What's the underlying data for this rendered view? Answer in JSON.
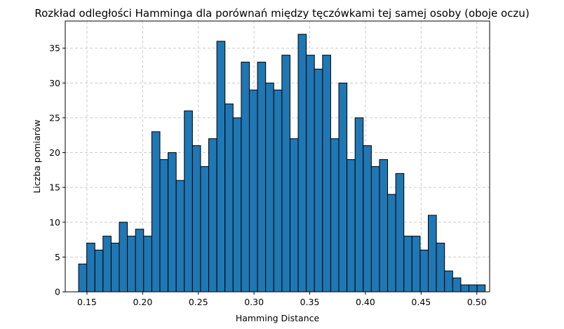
{
  "chart_data": {
    "type": "bar",
    "title": "Rozkład odległości Hamminga dla porównań między tęczówkami tej samej osoby (oboje oczu)",
    "xlabel": "Hamming Distance",
    "ylabel": "Liczba pomiarów",
    "xlim": [
      0.1305,
      0.5115
    ],
    "ylim": [
      0,
      38.9
    ],
    "grid": true,
    "colors": {
      "bar_fill": "#1f77b4",
      "bar_edge": "#000000",
      "grid": "#cccccc"
    },
    "x_ticks": [
      "0.15",
      "0.20",
      "0.25",
      "0.30",
      "0.35",
      "0.40",
      "0.45",
      "0.50"
    ],
    "x_tick_values": [
      0.15,
      0.2,
      0.25,
      0.3,
      0.35,
      0.4,
      0.45,
      0.5
    ],
    "y_ticks": [
      "0",
      "5",
      "10",
      "15",
      "20",
      "25",
      "30",
      "35"
    ],
    "y_tick_values": [
      0,
      5,
      10,
      15,
      20,
      25,
      30,
      35
    ],
    "bin_start": 0.1425,
    "bin_width": 0.0073,
    "values": [
      4,
      7,
      6,
      8,
      7,
      10,
      8,
      9,
      8,
      23,
      19,
      20,
      16,
      26,
      21,
      18,
      22,
      36,
      27,
      25,
      33,
      29,
      33,
      30,
      29,
      34,
      22,
      37,
      34,
      32,
      34,
      22,
      30,
      19,
      25,
      21,
      18,
      19,
      14,
      17,
      8,
      8,
      6,
      11,
      7,
      3,
      2,
      1,
      1,
      1
    ]
  }
}
